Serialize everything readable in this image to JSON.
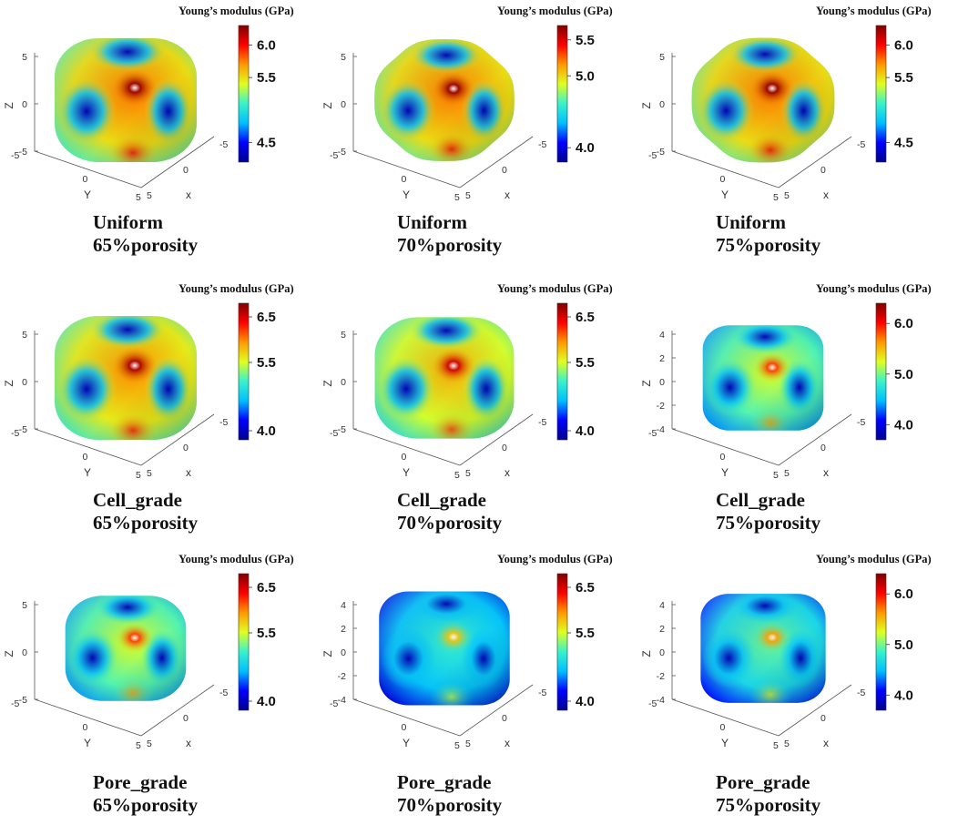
{
  "colors": {
    "colormap": [
      "#00008f",
      "#0000ff",
      "#00bfff",
      "#39f2cb",
      "#dfff20",
      "#ff9900",
      "#ff0000",
      "#800000"
    ],
    "axis": "#555555"
  },
  "chart_data": [
    {
      "type": "surface3d",
      "colorbar_title": "Young’s modulus (GPa)",
      "colorbar_range": [
        4.2,
        6.3
      ],
      "colorbar_ticks": [
        "6.0",
        "5.5",
        "4.5"
      ],
      "colorbar_tick_values": [
        6.0,
        5.5,
        4.5
      ],
      "z_ticks": [
        "5",
        "0",
        "-5"
      ],
      "y_ticks": [
        "-5",
        "0",
        "5"
      ],
      "x_ticks": [
        "-5",
        "0",
        "5"
      ],
      "xlabel": "x",
      "ylabel": "Y",
      "zlabel": "Z",
      "caption_line1": "Uniform",
      "caption_line2": "65%porosity",
      "mean_fraction": 0.62,
      "size": 1.0,
      "shape": "round"
    },
    {
      "type": "surface3d",
      "colorbar_title": "Young’s modulus (GPa)",
      "colorbar_range": [
        3.8,
        5.7
      ],
      "colorbar_ticks": [
        "5.5",
        "5.0",
        "4.0"
      ],
      "colorbar_tick_values": [
        5.5,
        5.0,
        4.0
      ],
      "z_ticks": [
        "5",
        "0",
        "-5"
      ],
      "y_ticks": [
        "-5",
        "0",
        "5"
      ],
      "x_ticks": [
        "-5",
        "0",
        "5"
      ],
      "xlabel": "x",
      "ylabel": "Y",
      "zlabel": "Z",
      "caption_line1": "Uniform",
      "caption_line2": "70%porosity",
      "mean_fraction": 0.62,
      "size": 0.93,
      "shape": "lobed"
    },
    {
      "type": "surface3d",
      "colorbar_title": "Young’s modulus (GPa)",
      "colorbar_range": [
        4.2,
        6.3
      ],
      "colorbar_ticks": [
        "6.0",
        "5.5",
        "4.5"
      ],
      "colorbar_tick_values": [
        6.0,
        5.5,
        4.5
      ],
      "z_ticks": [
        "5",
        "0",
        "-5"
      ],
      "y_ticks": [
        "-5",
        "0",
        "5"
      ],
      "x_ticks": [
        "-5",
        "0",
        "5"
      ],
      "xlabel": "x",
      "ylabel": "Y",
      "zlabel": "Z",
      "caption_line1": "Uniform",
      "caption_line2": "75%porosity",
      "mean_fraction": 0.62,
      "size": 0.95,
      "shape": "lobed"
    },
    {
      "type": "surface3d",
      "colorbar_title": "Young’s modulus (GPa)",
      "colorbar_range": [
        3.8,
        6.8
      ],
      "colorbar_ticks": [
        "6.5",
        "5.5",
        "4.0"
      ],
      "colorbar_tick_values": [
        6.5,
        5.5,
        4.0
      ],
      "z_ticks": [
        "5",
        "0",
        "-5"
      ],
      "y_ticks": [
        "-5",
        "0",
        "5"
      ],
      "x_ticks": [
        "-5",
        "0",
        "5"
      ],
      "xlabel": "x",
      "ylabel": "Y",
      "zlabel": "Z",
      "caption_line1": "Cell_grade",
      "caption_line2": "65%porosity",
      "mean_fraction": 0.6,
      "size": 1.0,
      "shape": "round"
    },
    {
      "type": "surface3d",
      "colorbar_title": "Young’s modulus (GPa)",
      "colorbar_range": [
        3.8,
        6.8
      ],
      "colorbar_ticks": [
        "6.5",
        "5.5",
        "4.0"
      ],
      "colorbar_tick_values": [
        6.5,
        5.5,
        4.0
      ],
      "z_ticks": [
        "5",
        "0",
        "-5"
      ],
      "y_ticks": [
        "-5",
        "0",
        "5"
      ],
      "x_ticks": [
        "-5",
        "0",
        "5"
      ],
      "xlabel": "x",
      "ylabel": "Y",
      "zlabel": "Z",
      "caption_line1": "Cell_grade",
      "caption_line2": "70%porosity",
      "mean_fraction": 0.56,
      "size": 0.98,
      "shape": "round"
    },
    {
      "type": "surface3d",
      "colorbar_title": "Young’s modulus (GPa)",
      "colorbar_range": [
        3.7,
        6.4
      ],
      "colorbar_ticks": [
        "6.0",
        "5.0",
        "4.0"
      ],
      "colorbar_tick_values": [
        6.0,
        5.0,
        4.0
      ],
      "z_ticks": [
        "4",
        "2",
        "0",
        "-2",
        "-4"
      ],
      "y_ticks": [
        "-5",
        "0",
        "5"
      ],
      "x_ticks": [
        "-5",
        "0",
        "5"
      ],
      "xlabel": "x",
      "ylabel": "Y",
      "zlabel": "Z",
      "caption_line1": "Cell_grade",
      "caption_line2": "75%porosity",
      "mean_fraction": 0.45,
      "size": 0.85,
      "shape": "square"
    },
    {
      "type": "surface3d",
      "colorbar_title": "Young’s modulus (GPa)",
      "colorbar_range": [
        3.8,
        6.8
      ],
      "colorbar_ticks": [
        "6.5",
        "5.5",
        "4.0"
      ],
      "colorbar_tick_values": [
        6.5,
        5.5,
        4.0
      ],
      "z_ticks": [
        "5",
        "0",
        "-5"
      ],
      "y_ticks": [
        "-5",
        "0",
        "5"
      ],
      "x_ticks": [
        "-5",
        "0",
        "5"
      ],
      "xlabel": "x",
      "ylabel": "Y",
      "zlabel": "Z",
      "caption_line1": "Pore_grade",
      "caption_line2": "65%porosity",
      "mean_fraction": 0.45,
      "size": 0.85,
      "shape": "round"
    },
    {
      "type": "surface3d",
      "colorbar_title": "Young’s modulus (GPa)",
      "colorbar_range": [
        3.8,
        6.8
      ],
      "colorbar_ticks": [
        "6.5",
        "5.5",
        "4.0"
      ],
      "colorbar_tick_values": [
        6.5,
        5.5,
        4.0
      ],
      "z_ticks": [
        "4",
        "2",
        "0",
        "-2",
        "-4"
      ],
      "y_ticks": [
        "-5",
        "0",
        "5"
      ],
      "x_ticks": [
        "-5",
        "0",
        "5"
      ],
      "xlabel": "x",
      "ylabel": "Y",
      "zlabel": "Z",
      "caption_line1": "Pore_grade",
      "caption_line2": "70%porosity",
      "mean_fraction": 0.3,
      "size": 0.92,
      "shape": "square"
    },
    {
      "type": "surface3d",
      "colorbar_title": "Young’s modulus (GPa)",
      "colorbar_range": [
        3.7,
        6.4
      ],
      "colorbar_ticks": [
        "6.0",
        "5.0",
        "4.0"
      ],
      "colorbar_tick_values": [
        6.0,
        5.0,
        4.0
      ],
      "z_ticks": [
        "4",
        "2",
        "0",
        "-2",
        "-4"
      ],
      "y_ticks": [
        "-5",
        "0",
        "5"
      ],
      "x_ticks": [
        "-5",
        "0",
        "5"
      ],
      "xlabel": "x",
      "ylabel": "Y",
      "zlabel": "Z",
      "caption_line1": "Pore_grade",
      "caption_line2": "75%porosity",
      "mean_fraction": 0.35,
      "size": 0.88,
      "shape": "square"
    }
  ]
}
